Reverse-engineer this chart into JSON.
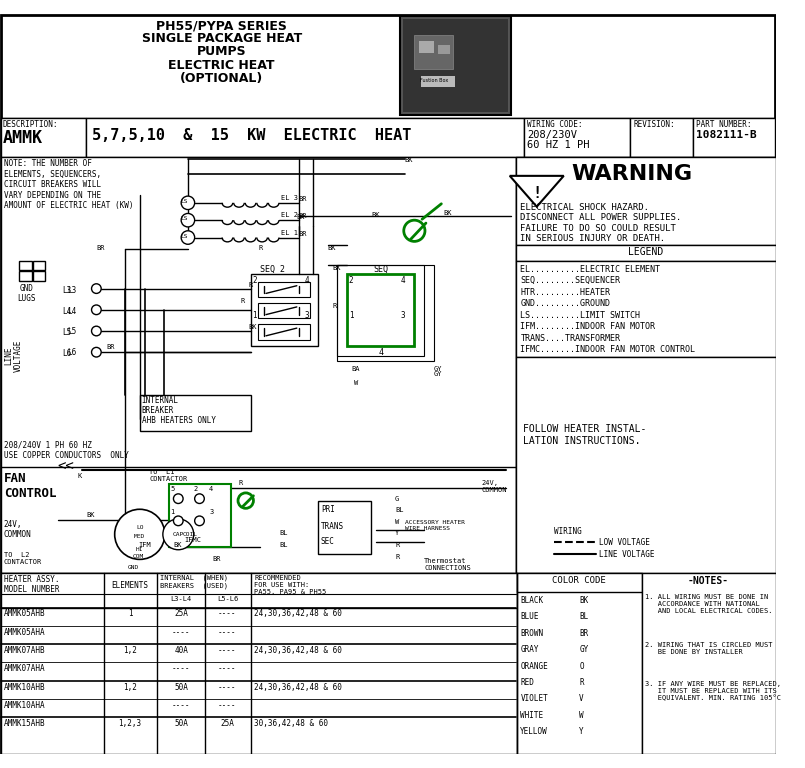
{
  "title_line1": "PH55/PYPA SERIES",
  "title_line2": "SINGLE PACKAGE HEAT",
  "title_line3": "PUMPS",
  "title_line4": "ELECTRIC HEAT",
  "title_line5": "(OPTIONAL)",
  "description_label": "DESCRIPTION:",
  "description_value": "AMMK",
  "description_kw": "5,7,5,10  &  15  KW  ELECTRIC  HEAT",
  "wiring_code_label": "WIRING CODE:",
  "wiring_code_value": "208/230V\n60 HZ 1 PH",
  "revision_label": "REVISION:",
  "part_number_label": "PART NUMBER:",
  "part_number_value": "1082111-B",
  "warning_title": "WARNING",
  "warning_text": "ELECTRICAL SHOCK HAZARD.\nDISCONNECT ALL POWER SUPPLIES.\nFAILURE TO DO SO COULD RESULT\nIN SERIOUS INJURY OR DEATH.",
  "legend_title": "LEGEND",
  "legend_items": [
    "EL..........ELECTRIC ELEMENT",
    "SEQ........SEQUENCER",
    "HTR.........HEATER",
    "GND.........GROUND",
    "LS..........LIMIT SWITCH",
    "IFM........INDOOR FAN MOTOR",
    "TRANS....TRANSFORMER",
    "IFMC.......INDOOR FAN MOTOR CONTROL"
  ],
  "follow_text": "FOLLOW HEATER INSTAL-\nLATION INSTRUCTIONS.",
  "note_text": "NOTE: THE NUMBER OF\nELEMENTS, SEQUENCERS,\nCIRCUIT BREAKERS WILL\nVARY DEPENDING ON THE\nAMOUNT OF ELECTRIC HEAT (KW)",
  "gnd_lugs": "GND\nLUGS",
  "line_voltage_vert": "LINE\nVOLTAGE",
  "internal_breaker": "INTERNAL\nBREAKER\nAHB HEATERS ONLY",
  "hz_note": "208/240V 1 PH 60 HZ\nUSE COPPER CONDUCTORS  ONLY",
  "fan_control": "FAN\nCONTROL",
  "to_l1_contactor": "TO  L1\nCONTACTOR",
  "to_l2_contactor": "TO  L2\nCONTACTOR",
  "common_24v": "24V,\nCOMMON",
  "ifmc_label": "IFMC",
  "accessory_label": "ACCESSORY HEATER\nWIRE HARNESS",
  "wiring_label": "WIRING",
  "low_voltage": "LOW VOLTAGE",
  "line_voltage_legend": "LINE VOLTAGE",
  "thermostat_label": "Thermostat\nCONNECTIONS",
  "color_code_title": "COLOR CODE",
  "colors": [
    [
      "BLACK",
      "BK"
    ],
    [
      "BLUE",
      "BL"
    ],
    [
      "BROWN",
      "BR"
    ],
    [
      "GRAY",
      "GY"
    ],
    [
      "ORANGE",
      "O"
    ],
    [
      "RED",
      "R"
    ],
    [
      "VIOLET",
      "V"
    ],
    [
      "WHITE",
      "W"
    ],
    [
      "YELLOW",
      "Y"
    ]
  ],
  "notes_title": "-NOTES-",
  "notes": [
    "1. ALL WIRING MUST BE DONE IN\n   ACCORDANCE WITH NATIONAL\n   AND LOCAL ELECTRICAL CODES.",
    "2. WIRING THAT IS CIRCLED MUST\n   BE DONE BY INSTALLER",
    "3. IF ANY WIRE MUST BE REPLACED,\n   IT MUST BE REPLACED WITH ITS\n   EQUIVALENT. MIN. RATING 105°C"
  ],
  "table_rows": [
    [
      "AMMK05AHB",
      "1",
      "25A",
      "----",
      "24,30,36,42,48 & 60"
    ],
    [
      "AMMK05AHA",
      "",
      "----",
      "----",
      ""
    ],
    [
      "AMMK07AHB",
      "1,2",
      "40A",
      "----",
      "24,30,36,42,48 & 60"
    ],
    [
      "AMMK07AHA",
      "",
      "----",
      "----",
      ""
    ],
    [
      "AMMK10AHB",
      "1,2",
      "50A",
      "----",
      "24,30,36,42,48 & 60"
    ],
    [
      "AMMK10AHA",
      "",
      "----",
      "----",
      ""
    ],
    [
      "AMMK15AHB",
      "1,2,3",
      "50A",
      "25A",
      "30,36,42,48 & 60"
    ]
  ],
  "green_color": "#008000"
}
